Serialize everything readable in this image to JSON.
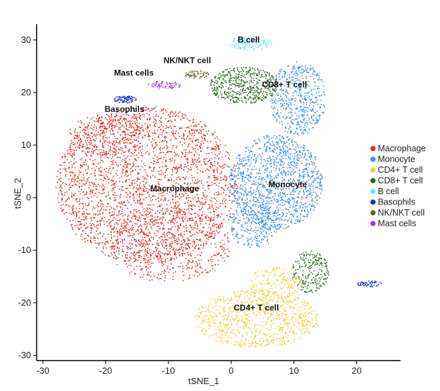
{
  "chart_data": {
    "type": "scatter",
    "title": "",
    "xlabel": "tSNE_1",
    "ylabel": "tSNE_2",
    "xlim": [
      -31,
      27
    ],
    "ylim": [
      -31,
      33
    ],
    "xticks": [
      -30,
      -20,
      -10,
      0,
      10,
      20
    ],
    "yticks": [
      -30,
      -20,
      -10,
      0,
      10,
      20,
      30
    ],
    "grid": false,
    "legend_position": "right",
    "series": [
      {
        "name": "Macrophage",
        "color": "#e0291f",
        "label": "Macrophage",
        "label_pos": [
          -9,
          1.2
        ],
        "blobs": [
          {
            "cx": -13.5,
            "cy": 2.5,
            "rx": 14.5,
            "ry": 15,
            "n": 2600
          },
          {
            "cx": -10,
            "cy": -9,
            "rx": 10,
            "ry": 7,
            "n": 500
          },
          {
            "cx": -20,
            "cy": 12,
            "rx": 6,
            "ry": 4,
            "n": 250
          }
        ]
      },
      {
        "name": "Monocyte",
        "color": "#3a8fe8",
        "label": "Monocyte",
        "label_pos": [
          9,
          2
        ],
        "blobs": [
          {
            "cx": 7,
            "cy": 3,
            "rx": 7.5,
            "ry": 9,
            "n": 1300
          },
          {
            "cx": 10.5,
            "cy": 19,
            "rx": 4.5,
            "ry": 7,
            "n": 500
          },
          {
            "cx": 3.5,
            "cy": -5,
            "rx": 4,
            "ry": 4.5,
            "n": 250
          }
        ]
      },
      {
        "name": "CD4+ T cell",
        "color": "#f0d23a",
        "label": "CD4+ T cell",
        "label_pos": [
          4,
          -21.5
        ],
        "blobs": [
          {
            "cx": 4,
            "cy": -23,
            "rx": 10,
            "ry": 5.5,
            "n": 900
          },
          {
            "cx": 7,
            "cy": -16.5,
            "rx": 4.5,
            "ry": 3.5,
            "n": 200
          }
        ]
      },
      {
        "name": "CD8+ T cell",
        "color": "#2e6b22",
        "label": "CD8+ T cell",
        "label_pos": [
          8.5,
          21
        ],
        "blobs": [
          {
            "cx": 2,
            "cy": 21.5,
            "rx": 5.5,
            "ry": 3.5,
            "n": 500
          },
          {
            "cx": 12.5,
            "cy": -14,
            "rx": 3,
            "ry": 4,
            "n": 220
          }
        ]
      },
      {
        "name": "B cell",
        "color": "#6ee8ee",
        "label": "B cell",
        "label_pos": [
          2.8,
          29.5
        ],
        "blobs": [
          {
            "cx": 3,
            "cy": 29.5,
            "rx": 3.5,
            "ry": 1.4,
            "n": 120
          }
        ]
      },
      {
        "name": "Basophils",
        "color": "#1a33cc",
        "label": "Basophils",
        "label_pos": [
          -17,
          16.3
        ],
        "blobs": [
          {
            "cx": -17,
            "cy": 18.8,
            "rx": 1.8,
            "ry": 0.7,
            "n": 80
          },
          {
            "cx": 22,
            "cy": -16.3,
            "rx": 2,
            "ry": 0.6,
            "n": 50
          }
        ]
      },
      {
        "name": "NK/NKT cell",
        "color": "#6b6423",
        "label": "NK/NKT cell",
        "label_pos": [
          -7,
          25.6
        ],
        "blobs": [
          {
            "cx": -5.5,
            "cy": 23.5,
            "rx": 2,
            "ry": 0.8,
            "n": 60
          }
        ]
      },
      {
        "name": "Mast cells",
        "color": "#9933ee",
        "label": "Mast cells",
        "label_pos": [
          -15.5,
          23.2
        ],
        "blobs": [
          {
            "cx": -10.8,
            "cy": 21.5,
            "rx": 2.8,
            "ry": 0.8,
            "n": 60
          }
        ]
      }
    ]
  }
}
